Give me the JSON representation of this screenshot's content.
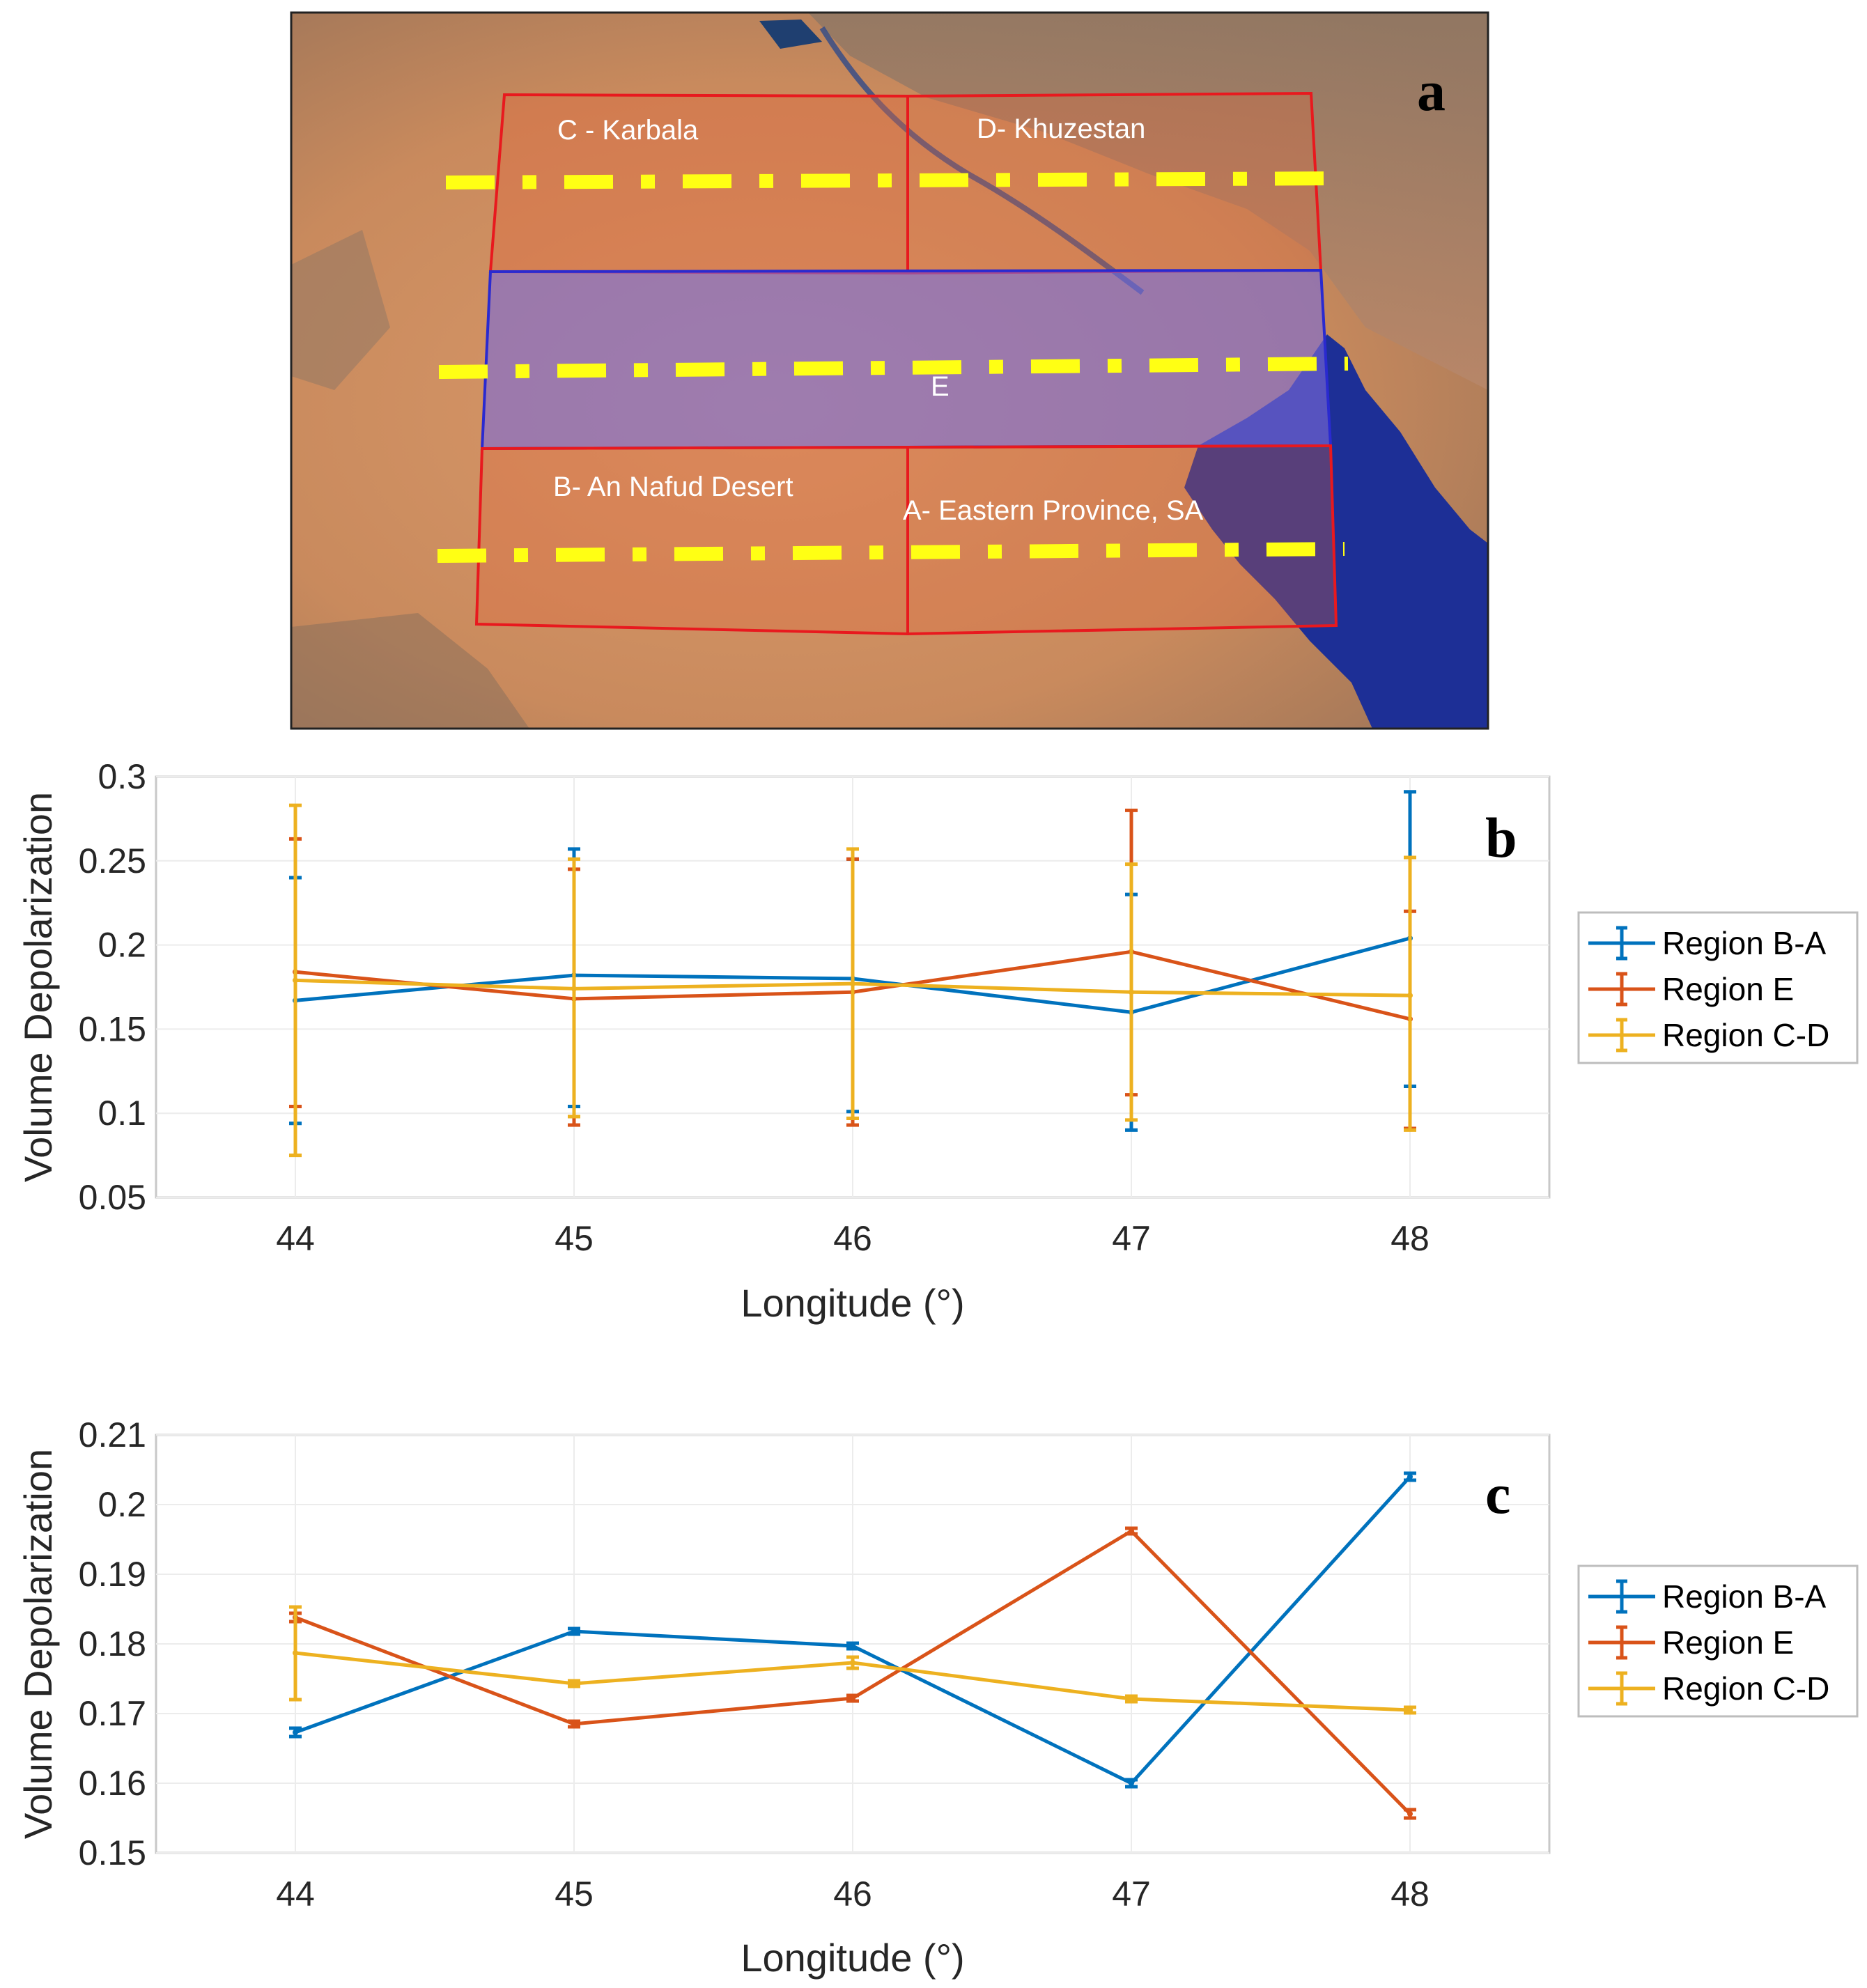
{
  "figure": {
    "panel_labels": {
      "a": "a",
      "b": "b",
      "c": "c"
    }
  },
  "map": {
    "region_labels": {
      "c": "C - Karbala",
      "d": "D- Khuzestan",
      "e": "E",
      "b": "B- An Nafud Desert",
      "a": "A- Eastern Province, SA"
    },
    "colors": {
      "desert": "#c98a5d",
      "sea": "#1d2f96",
      "region_fill_red": "#e0673c",
      "region_fill_blue": "#7a6ad8",
      "region_border": "#e8191e",
      "region_e_border": "#2a2ad0",
      "transect": "#ffff14"
    }
  },
  "legend": {
    "items": [
      "Region B-A",
      "Region E",
      "Region C-D"
    ]
  },
  "chart_data": [
    {
      "id": "b",
      "type": "line",
      "title": "",
      "xlabel": "Longitude (°)",
      "ylabel": "Volume Depolarization",
      "x": [
        44,
        45,
        46,
        47,
        48
      ],
      "xlim": [
        43.5,
        48.5
      ],
      "ylim": [
        0.05,
        0.3
      ],
      "xticks": [
        "44",
        "45",
        "46",
        "47",
        "48"
      ],
      "yticks": [
        "0.05",
        "0.1",
        "0.15",
        "0.2",
        "0.25",
        "0.3"
      ],
      "grid": true,
      "error_bars": true,
      "legend_position": "right",
      "series": [
        {
          "name": "Region B-A",
          "color": "#0072bd",
          "values": [
            0.167,
            0.182,
            0.18,
            0.16,
            0.204
          ],
          "lower": [
            0.094,
            0.104,
            0.101,
            0.09,
            0.116
          ],
          "upper": [
            0.24,
            0.257,
            0.251,
            0.23,
            0.291
          ]
        },
        {
          "name": "Region E",
          "color": "#d95319",
          "values": [
            0.184,
            0.168,
            0.172,
            0.196,
            0.156
          ],
          "lower": [
            0.104,
            0.093,
            0.093,
            0.111,
            0.091
          ],
          "upper": [
            0.263,
            0.245,
            0.251,
            0.28,
            0.22
          ]
        },
        {
          "name": "Region C-D",
          "color": "#edb120",
          "values": [
            0.179,
            0.174,
            0.177,
            0.172,
            0.17
          ],
          "lower": [
            0.075,
            0.098,
            0.097,
            0.096,
            0.09
          ],
          "upper": [
            0.283,
            0.251,
            0.257,
            0.248,
            0.252
          ]
        }
      ]
    },
    {
      "id": "c",
      "type": "line",
      "title": "",
      "xlabel": "Longitude (°)",
      "ylabel": "Volume Depolarization",
      "x": [
        44,
        45,
        46,
        47,
        48
      ],
      "xlim": [
        43.5,
        48.5
      ],
      "ylim": [
        0.15,
        0.21
      ],
      "xticks": [
        "44",
        "45",
        "46",
        "47",
        "48"
      ],
      "yticks": [
        "0.15",
        "0.16",
        "0.17",
        "0.18",
        "0.19",
        "0.2",
        "0.21"
      ],
      "grid": true,
      "error_bars": true,
      "legend_position": "right",
      "series": [
        {
          "name": "Region B-A",
          "color": "#0072bd",
          "values": [
            0.1673,
            0.1818,
            0.1797,
            0.16,
            0.204
          ],
          "lower": [
            0.1667,
            0.1814,
            0.1793,
            0.1595,
            0.2035
          ],
          "upper": [
            0.1679,
            0.1822,
            0.1801,
            0.1605,
            0.2045
          ]
        },
        {
          "name": "Region E",
          "color": "#d95319",
          "values": [
            0.1838,
            0.1685,
            0.1722,
            0.1962,
            0.1556
          ],
          "lower": [
            0.1832,
            0.1681,
            0.1718,
            0.1958,
            0.155
          ],
          "upper": [
            0.1844,
            0.1689,
            0.1726,
            0.1966,
            0.1562
          ]
        },
        {
          "name": "Region C-D",
          "color": "#edb120",
          "values": [
            0.1787,
            0.1743,
            0.1773,
            0.1721,
            0.1705
          ],
          "lower": [
            0.172,
            0.1739,
            0.1765,
            0.1717,
            0.1701
          ],
          "upper": [
            0.1853,
            0.1747,
            0.1781,
            0.1725,
            0.1709
          ]
        }
      ]
    }
  ]
}
